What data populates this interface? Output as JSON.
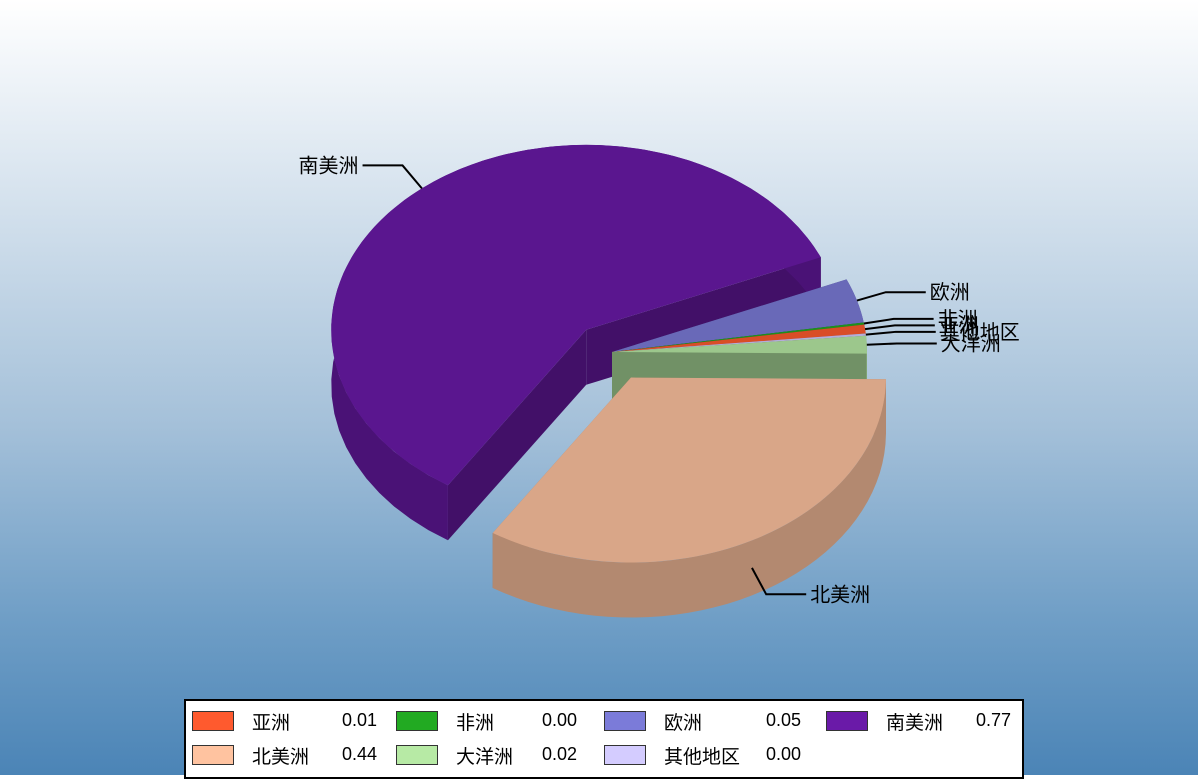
{
  "chart_data": {
    "type": "pie",
    "style": "3d-exploded",
    "slices": [
      {
        "label": "亚洲",
        "value": 0.01,
        "color": "#ff5a2e",
        "shown_on_chart": true
      },
      {
        "label": "非洲",
        "value": 0.0,
        "color": "#22aa22",
        "shown_on_chart": true
      },
      {
        "label": "欧洲",
        "value": 0.05,
        "color": "#7b7bd9",
        "shown_on_chart": true
      },
      {
        "label": "南美洲",
        "value": 0.77,
        "color": "#6a1aa8",
        "shown_on_chart": true
      },
      {
        "label": "北美洲",
        "value": 0.44,
        "color": "#ffc3a0",
        "shown_on_chart": true
      },
      {
        "label": "大洋洲",
        "value": 0.02,
        "color": "#b7eaa5",
        "shown_on_chart": true
      },
      {
        "label": "其他地区",
        "value": 0.0,
        "color": "#d4ccff",
        "shown_on_chart": true
      }
    ],
    "legend": {
      "position": "bottom",
      "items": [
        {
          "label": "亚洲",
          "value": "0.01"
        },
        {
          "label": "非洲",
          "value": "0.00"
        },
        {
          "label": "欧洲",
          "value": "0.05"
        },
        {
          "label": "南美洲",
          "value": "0.77"
        },
        {
          "label": "北美洲",
          "value": "0.44"
        },
        {
          "label": "大洋洲",
          "value": "0.02"
        },
        {
          "label": "其他地区",
          "value": "0.00"
        }
      ]
    }
  }
}
